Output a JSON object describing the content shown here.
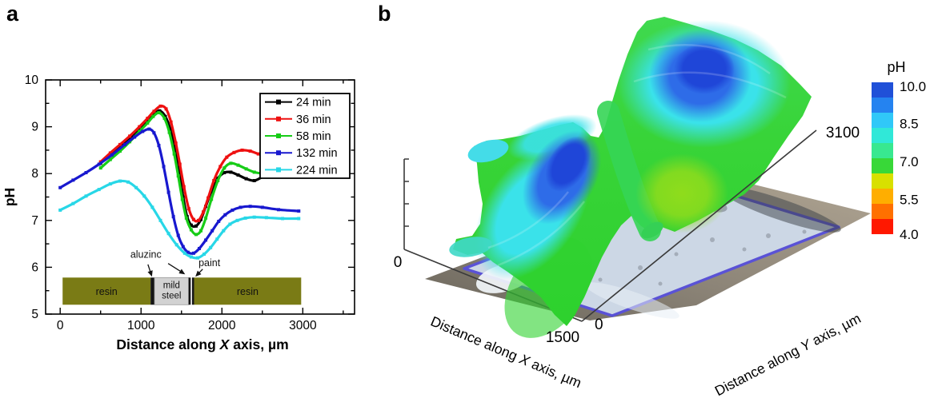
{
  "panels": {
    "a": "a",
    "b": "b"
  },
  "chart_data": [
    {
      "id": "panel_a",
      "type": "line",
      "ylabel": "pH",
      "xlabel": {
        "prefix": "Distance along ",
        "italic": "X",
        "suffix": " axis, µm"
      },
      "xlim": [
        -180,
        3640
      ],
      "ylim": [
        5,
        10
      ],
      "x_ticks": [
        0,
        1000,
        2000,
        3000
      ],
      "x_minor_ticks": [
        500,
        1500,
        2500,
        3500
      ],
      "y_ticks": [
        5,
        6,
        7,
        8,
        9,
        10
      ],
      "y_minor_ticks": [
        5.5,
        6.5,
        7.5,
        8.5,
        9.5
      ],
      "legend_position": "top-right",
      "grid": false,
      "series": [
        {
          "name": "24 min",
          "color": "#000000",
          "points": [
            [
              500,
              8.22
            ],
            [
              620,
              8.4
            ],
            [
              740,
              8.56
            ],
            [
              860,
              8.74
            ],
            [
              980,
              8.95
            ],
            [
              1080,
              9.12
            ],
            [
              1160,
              9.27
            ],
            [
              1230,
              9.34
            ],
            [
              1300,
              9.22
            ],
            [
              1360,
              8.95
            ],
            [
              1420,
              8.5
            ],
            [
              1470,
              8.05
            ],
            [
              1520,
              7.5
            ],
            [
              1570,
              7.08
            ],
            [
              1620,
              6.9
            ],
            [
              1680,
              6.88
            ],
            [
              1740,
              7.02
            ],
            [
              1800,
              7.3
            ],
            [
              1870,
              7.62
            ],
            [
              1950,
              7.9
            ],
            [
              2030,
              8.02
            ],
            [
              2110,
              8.03
            ],
            [
              2200,
              7.97
            ],
            [
              2300,
              7.89
            ],
            [
              2400,
              7.85
            ],
            [
              2500,
              7.93
            ]
          ]
        },
        {
          "name": "36 min",
          "color": "#ee1010",
          "points": [
            [
              500,
              8.25
            ],
            [
              620,
              8.44
            ],
            [
              740,
              8.62
            ],
            [
              860,
              8.8
            ],
            [
              980,
              9.0
            ],
            [
              1080,
              9.18
            ],
            [
              1160,
              9.33
            ],
            [
              1240,
              9.44
            ],
            [
              1310,
              9.38
            ],
            [
              1370,
              9.1
            ],
            [
              1430,
              8.65
            ],
            [
              1480,
              8.2
            ],
            [
              1530,
              7.72
            ],
            [
              1590,
              7.25
            ],
            [
              1650,
              7.02
            ],
            [
              1710,
              7.0
            ],
            [
              1770,
              7.18
            ],
            [
              1830,
              7.48
            ],
            [
              1900,
              7.85
            ],
            [
              1980,
              8.15
            ],
            [
              2060,
              8.35
            ],
            [
              2150,
              8.45
            ],
            [
              2250,
              8.5
            ],
            [
              2350,
              8.48
            ],
            [
              2450,
              8.42
            ],
            [
              2550,
              8.36
            ]
          ]
        },
        {
          "name": "58 min",
          "color": "#17cc17",
          "points": [
            [
              500,
              8.12
            ],
            [
              620,
              8.3
            ],
            [
              740,
              8.48
            ],
            [
              860,
              8.68
            ],
            [
              980,
              8.9
            ],
            [
              1080,
              9.08
            ],
            [
              1150,
              9.22
            ],
            [
              1220,
              9.3
            ],
            [
              1290,
              9.18
            ],
            [
              1350,
              8.88
            ],
            [
              1410,
              8.42
            ],
            [
              1460,
              7.95
            ],
            [
              1510,
              7.45
            ],
            [
              1560,
              7.05
            ],
            [
              1620,
              6.8
            ],
            [
              1680,
              6.7
            ],
            [
              1740,
              6.78
            ],
            [
              1800,
              7.05
            ],
            [
              1870,
              7.45
            ],
            [
              1950,
              7.85
            ],
            [
              2030,
              8.12
            ],
            [
              2110,
              8.22
            ],
            [
              2200,
              8.18
            ],
            [
              2300,
              8.1
            ],
            [
              2400,
              8.03
            ],
            [
              2500,
              8.0
            ]
          ]
        },
        {
          "name": "132 min",
          "color": "#1818cf",
          "points": [
            [
              0,
              7.7
            ],
            [
              160,
              7.86
            ],
            [
              320,
              8.02
            ],
            [
              480,
              8.2
            ],
            [
              640,
              8.4
            ],
            [
              800,
              8.62
            ],
            [
              920,
              8.78
            ],
            [
              1020,
              8.9
            ],
            [
              1100,
              8.95
            ],
            [
              1160,
              8.87
            ],
            [
              1220,
              8.6
            ],
            [
              1280,
              8.15
            ],
            [
              1340,
              7.6
            ],
            [
              1400,
              7.08
            ],
            [
              1460,
              6.68
            ],
            [
              1520,
              6.44
            ],
            [
              1580,
              6.32
            ],
            [
              1650,
              6.3
            ],
            [
              1720,
              6.4
            ],
            [
              1800,
              6.58
            ],
            [
              1880,
              6.78
            ],
            [
              1960,
              6.98
            ],
            [
              2040,
              7.12
            ],
            [
              2130,
              7.22
            ],
            [
              2230,
              7.28
            ],
            [
              2350,
              7.3
            ],
            [
              2500,
              7.28
            ],
            [
              2700,
              7.23
            ],
            [
              2950,
              7.2
            ]
          ]
        },
        {
          "name": "224 min",
          "color": "#28d7e7",
          "points": [
            [
              0,
              7.22
            ],
            [
              160,
              7.36
            ],
            [
              320,
              7.52
            ],
            [
              480,
              7.66
            ],
            [
              620,
              7.78
            ],
            [
              740,
              7.84
            ],
            [
              840,
              7.82
            ],
            [
              940,
              7.7
            ],
            [
              1040,
              7.52
            ],
            [
              1140,
              7.28
            ],
            [
              1240,
              7.0
            ],
            [
              1340,
              6.72
            ],
            [
              1440,
              6.48
            ],
            [
              1540,
              6.3
            ],
            [
              1620,
              6.22
            ],
            [
              1700,
              6.2
            ],
            [
              1780,
              6.28
            ],
            [
              1860,
              6.42
            ],
            [
              1940,
              6.6
            ],
            [
              2020,
              6.78
            ],
            [
              2100,
              6.92
            ],
            [
              2190,
              7.0
            ],
            [
              2290,
              7.05
            ],
            [
              2400,
              7.07
            ],
            [
              2550,
              7.06
            ],
            [
              2750,
              7.04
            ],
            [
              2950,
              7.04
            ]
          ]
        }
      ],
      "inset": {
        "bar_ph_range": [
          5.2,
          5.78
        ],
        "colors": {
          "resin": "#7a7b15",
          "steel": "#d2d2d2",
          "line": "#151515"
        },
        "blocks": [
          {
            "kind": "resin",
            "x0": 30,
            "x1": 1118,
            "label": "resin"
          },
          {
            "kind": "line",
            "x0": 1118,
            "x1": 1166
          },
          {
            "kind": "steel",
            "x0": 1166,
            "x1": 1588,
            "label_lines": [
              "mild",
              "steel"
            ]
          },
          {
            "kind": "line",
            "x0": 1588,
            "x1": 1614
          },
          {
            "kind": "line",
            "x0": 1630,
            "x1": 1656
          },
          {
            "kind": "resin",
            "x0": 1656,
            "x1": 2980,
            "label": "resin"
          }
        ],
        "annotations": [
          {
            "text": "aluzinc",
            "t": [
              1060,
              6.2
            ],
            "arrows": [
              [
                [
                  1085,
                  6.06
                ],
                [
                  1135,
                  5.8
                ]
              ],
              [
                [
                  1335,
                  6.08
                ],
                [
                  1545,
                  5.85
                ]
              ]
            ]
          },
          {
            "text": "paint",
            "t": [
              1845,
              6.02
            ],
            "arrows": [
              [
                [
                  1762,
                  5.96
                ],
                [
                  1672,
                  5.8
                ]
              ]
            ]
          }
        ]
      }
    },
    {
      "id": "panel_b",
      "type": "surface",
      "x_axis": {
        "title_prefix": "Distance along ",
        "title_italic": "X",
        "title_suffix": " axis, µm",
        "tick_near": "0",
        "tick_far": "1500"
      },
      "y_axis": {
        "title_prefix": "Distance along ",
        "title_italic": "Y",
        "title_suffix": " axis, µm",
        "tick_near": "0",
        "tick_far": "3100"
      },
      "z_origin_label": "0",
      "colorbar": {
        "title": "pH",
        "tick_labels": [
          "10.0",
          "8.5",
          "7.0",
          "5.5",
          "4.0"
        ],
        "band_colors": [
          "#2050d8",
          "#2583f0",
          "#30c8f8",
          "#30e8d8",
          "#38e890",
          "#38d838",
          "#d8e000",
          "#ffae00",
          "#ff7000",
          "#ff1800"
        ],
        "range": [
          4.0,
          10.0
        ]
      },
      "surface_colors": {
        "low": "#2fd12f",
        "mid": "#3ae0e8",
        "high": "#1f46d8",
        "valley": "#8fdc1c"
      }
    }
  ]
}
